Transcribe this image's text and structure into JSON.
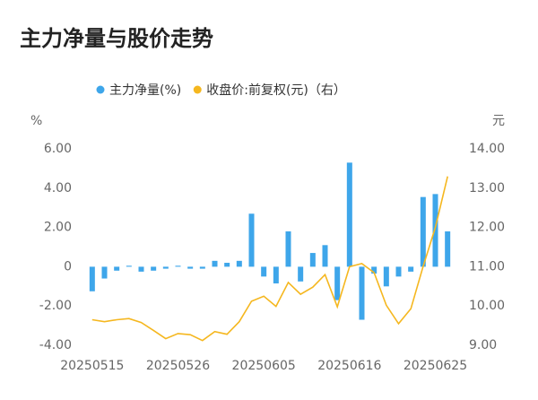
{
  "chart_data": {
    "type": "bar-line",
    "title": "主力净量与股价走势",
    "y_label": "%",
    "y2_label": "元",
    "categories": [
      "20250515",
      null,
      null,
      null,
      null,
      null,
      null,
      "20250526",
      null,
      null,
      null,
      null,
      null,
      null,
      "20250605",
      null,
      null,
      null,
      null,
      null,
      null,
      "20250616",
      null,
      null,
      null,
      null,
      null,
      null,
      "20250625",
      null
    ],
    "series": [
      {
        "name": "主力净量(%)",
        "type": "bar",
        "color": "#3ea6ea",
        "axis": "y",
        "values": [
          -1.25,
          -0.6,
          -0.2,
          0.05,
          -0.25,
          -0.2,
          -0.1,
          0.05,
          -0.1,
          -0.1,
          0.3,
          0.2,
          0.3,
          2.7,
          -0.5,
          -0.85,
          1.8,
          -0.75,
          0.7,
          1.1,
          -1.7,
          5.3,
          -2.7,
          -0.35,
          -1.0,
          -0.5,
          -0.25,
          3.55,
          3.7,
          1.8
        ]
      },
      {
        "name": "收盘价:前复权(元)（右）",
        "type": "line",
        "color": "#f5b71f",
        "axis": "y2",
        "values": [
          9.65,
          9.6,
          9.65,
          9.68,
          9.58,
          9.38,
          9.17,
          9.3,
          9.27,
          9.12,
          9.35,
          9.28,
          9.6,
          10.12,
          10.25,
          9.99,
          10.6,
          10.3,
          10.48,
          10.8,
          9.98,
          11.0,
          11.08,
          10.85,
          10.02,
          9.55,
          9.93,
          11.0,
          12.0,
          13.3
        ]
      }
    ],
    "ylim": [
      -4,
      6
    ],
    "yticks": [
      {
        "value": 6,
        "label": "6.00"
      },
      {
        "value": 4,
        "label": "4.00"
      },
      {
        "value": 2,
        "label": "2.00"
      },
      0,
      {
        "value": -2,
        "label": "-2.00"
      },
      {
        "value": -4,
        "label": "-4.00"
      }
    ],
    "y2lim": [
      9,
      14
    ],
    "y2ticks": [
      {
        "value": 14,
        "label": "14.00"
      },
      {
        "value": 13,
        "label": "13.00"
      },
      {
        "value": 12,
        "label": "12.00"
      },
      {
        "value": 11,
        "label": "11.00"
      },
      {
        "value": 10,
        "label": "10.00"
      },
      {
        "value": 9,
        "label": "9.00"
      }
    ],
    "grid": false,
    "legend": "top"
  }
}
